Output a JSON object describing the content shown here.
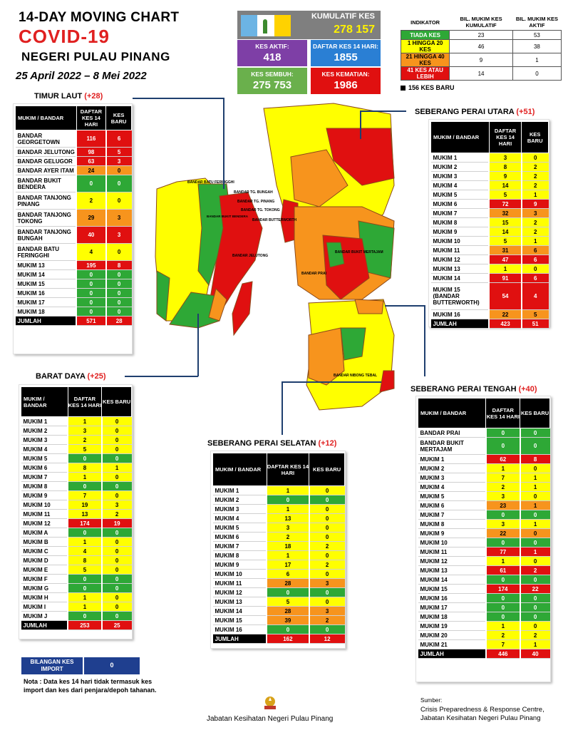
{
  "header": {
    "title": "14-DAY MOVING CHART",
    "subtitle": "COVID-19",
    "state": "NEGERI PULAU PINANG",
    "date_range": "25 April 2022 – 8 Mei 2022"
  },
  "summary": {
    "kumulatif_label": "KUMULATIF KES",
    "kumulatif_value": "278 157",
    "aktif_label": "KES AKTIF:",
    "aktif_value": "418",
    "daftar_label": "DAFTAR KES 14 HARI:",
    "daftar_value": "1855",
    "sembuh_label": "KES SEMBUH:",
    "sembuh_value": "275 753",
    "kematian_label": "KES KEMATIAN:",
    "kematian_value": "1986"
  },
  "colors": {
    "green": "#2ea836",
    "yellow": "#ffff00",
    "orange": "#f7941d",
    "red": "#e01010",
    "purple": "#7e3fa6",
    "blue": "#2a7fd4",
    "kematian": "#e01010",
    "sembuh": "#6ab04c"
  },
  "indicator": {
    "h_indikator": "INDIKATOR",
    "h_kumulatif": "BIL. MUKIM KES KUMULATIF",
    "h_aktif": "BIL. MUKIM KES AKTIF",
    "rows": [
      {
        "label": "TIADA KES",
        "kum": "23",
        "aktif": "53",
        "color": "green"
      },
      {
        "label": "1 HINGGA 20 KES",
        "kum": "46",
        "aktif": "38",
        "color": "yellow"
      },
      {
        "label": "21 HINGGA 40 KES",
        "kum": "9",
        "aktif": "1",
        "color": "orange"
      },
      {
        "label": "41 KES ATAU LEBIH",
        "kum": "14",
        "aktif": "0",
        "color": "red"
      }
    ],
    "baru": "156 KES BARU"
  },
  "sections": {
    "timur_laut": {
      "name": "TIMUR LAUT",
      "new": "(+28)",
      "h1": "MUKIM / BANDAR",
      "h2": "DAFTAR KES 14 HARI",
      "h3": "KES BARU",
      "rows": [
        {
          "n": "BANDAR GEORGETOWN",
          "a": "116",
          "b": "6",
          "c": "red"
        },
        {
          "n": "BANDAR JELUTONG",
          "a": "98",
          "b": "5",
          "c": "red"
        },
        {
          "n": "BANDAR GELUGOR",
          "a": "63",
          "b": "3",
          "c": "red"
        },
        {
          "n": "BANDAR AYER ITAM",
          "a": "24",
          "b": "0",
          "c": "orange"
        },
        {
          "n": "BANDAR BUKIT BENDERA",
          "a": "0",
          "b": "0",
          "c": "green"
        },
        {
          "n": "BANDAR TANJONG PINANG",
          "a": "2",
          "b": "0",
          "c": "yellow"
        },
        {
          "n": "BANDAR TANJONG TOKONG",
          "a": "29",
          "b": "3",
          "c": "orange"
        },
        {
          "n": "BANDAR TANJONG BUNGAH",
          "a": "40",
          "b": "3",
          "c": "red"
        },
        {
          "n": "BANDAR BATU FERINGGHI",
          "a": "4",
          "b": "0",
          "c": "yellow"
        },
        {
          "n": "MUKIM 13",
          "a": "195",
          "b": "8",
          "c": "red"
        },
        {
          "n": "MUKIM 14",
          "a": "0",
          "b": "0",
          "c": "green"
        },
        {
          "n": "MUKIM 15",
          "a": "0",
          "b": "0",
          "c": "green"
        },
        {
          "n": "MUKIM 16",
          "a": "0",
          "b": "0",
          "c": "green"
        },
        {
          "n": "MUKIM 17",
          "a": "0",
          "b": "0",
          "c": "green"
        },
        {
          "n": "MUKIM 18",
          "a": "0",
          "b": "0",
          "c": "green"
        }
      ],
      "total_label": "JUMLAH",
      "total_a": "571",
      "total_b": "28"
    },
    "barat_daya": {
      "name": "BARAT DAYA",
      "new": "(+25)",
      "h1": "MUKIM / BANDAR",
      "h2": "DAFTAR KES 14 HARI",
      "h3": "KES BARU",
      "rows": [
        {
          "n": "MUKIM 1",
          "a": "1",
          "b": "0",
          "c": "yellow"
        },
        {
          "n": "MUKIM 2",
          "a": "3",
          "b": "0",
          "c": "yellow"
        },
        {
          "n": "MUKIM 3",
          "a": "2",
          "b": "0",
          "c": "yellow"
        },
        {
          "n": "MUKIM 4",
          "a": "5",
          "b": "0",
          "c": "yellow"
        },
        {
          "n": "MUKIM 5",
          "a": "0",
          "b": "0",
          "c": "green"
        },
        {
          "n": "MUKIM 6",
          "a": "8",
          "b": "1",
          "c": "yellow"
        },
        {
          "n": "MUKIM 7",
          "a": "1",
          "b": "0",
          "c": "yellow"
        },
        {
          "n": "MUKIM 8",
          "a": "0",
          "b": "0",
          "c": "green"
        },
        {
          "n": "MUKIM 9",
          "a": "7",
          "b": "0",
          "c": "yellow"
        },
        {
          "n": "MUKIM 10",
          "a": "19",
          "b": "3",
          "c": "yellow"
        },
        {
          "n": "MUKIM 11",
          "a": "13",
          "b": "2",
          "c": "yellow"
        },
        {
          "n": "MUKIM 12",
          "a": "174",
          "b": "19",
          "c": "red"
        },
        {
          "n": "MUKIM A",
          "a": "0",
          "b": "0",
          "c": "green"
        },
        {
          "n": "MUKIM B",
          "a": "1",
          "b": "0",
          "c": "yellow"
        },
        {
          "n": "MUKIM C",
          "a": "4",
          "b": "0",
          "c": "yellow"
        },
        {
          "n": "MUKIM D",
          "a": "8",
          "b": "0",
          "c": "yellow"
        },
        {
          "n": "MUKIM E",
          "a": "5",
          "b": "0",
          "c": "yellow"
        },
        {
          "n": "MUKIM F",
          "a": "0",
          "b": "0",
          "c": "green"
        },
        {
          "n": "MUKIM G",
          "a": "0",
          "b": "0",
          "c": "green"
        },
        {
          "n": "MUKIM H",
          "a": "1",
          "b": "0",
          "c": "yellow"
        },
        {
          "n": "MUKIM I",
          "a": "1",
          "b": "0",
          "c": "yellow"
        },
        {
          "n": "MUKIM J",
          "a": "0",
          "b": "0",
          "c": "green"
        }
      ],
      "total_label": "JUMLAH",
      "total_a": "253",
      "total_b": "25"
    },
    "spu": {
      "name": "SEBERANG PERAI UTARA",
      "new": "(+51)",
      "h1": "MUKIM / BANDAR",
      "h2": "DAFTAR KES 14 HARI",
      "h3": "KES BARU",
      "rows": [
        {
          "n": "MUKIM 1",
          "a": "3",
          "b": "0",
          "c": "yellow"
        },
        {
          "n": "MUKIM 2",
          "a": "8",
          "b": "2",
          "c": "yellow"
        },
        {
          "n": "MUKIM 3",
          "a": "9",
          "b": "2",
          "c": "yellow"
        },
        {
          "n": "MUKIM 4",
          "a": "14",
          "b": "2",
          "c": "yellow"
        },
        {
          "n": "MUKIM 5",
          "a": "5",
          "b": "1",
          "c": "yellow"
        },
        {
          "n": "MUKIM 6",
          "a": "72",
          "b": "9",
          "c": "red"
        },
        {
          "n": "MUKIM 7",
          "a": "32",
          "b": "3",
          "c": "orange"
        },
        {
          "n": "MUKIM 8",
          "a": "15",
          "b": "2",
          "c": "yellow"
        },
        {
          "n": "MUKIM 9",
          "a": "14",
          "b": "2",
          "c": "yellow"
        },
        {
          "n": "MUKIM 10",
          "a": "5",
          "b": "1",
          "c": "yellow"
        },
        {
          "n": "MUKIM 11",
          "a": "31",
          "b": "6",
          "c": "orange"
        },
        {
          "n": "MUKIM 12",
          "a": "47",
          "b": "6",
          "c": "red"
        },
        {
          "n": "MUKIM 13",
          "a": "1",
          "b": "0",
          "c": "yellow"
        },
        {
          "n": "MUKIM 14",
          "a": "91",
          "b": "6",
          "c": "red"
        },
        {
          "n": "MUKIM 15 (BANDAR BUTTERWORTH)",
          "a": "54",
          "b": "4",
          "c": "red"
        },
        {
          "n": "MUKIM 16",
          "a": "22",
          "b": "5",
          "c": "orange"
        }
      ],
      "total_label": "JUMLAH",
      "total_a": "423",
      "total_b": "51"
    },
    "sps": {
      "name": "SEBERANG PERAI SELATAN",
      "new": "(+12)",
      "h1": "MUKIM / BANDAR",
      "h2": "DAFTAR KES 14 HARI",
      "h3": "KES BARU",
      "rows": [
        {
          "n": "MUKIM 1",
          "a": "1",
          "b": "0",
          "c": "yellow"
        },
        {
          "n": "MUKIM 2",
          "a": "0",
          "b": "0",
          "c": "green"
        },
        {
          "n": "MUKIM 3",
          "a": "1",
          "b": "0",
          "c": "yellow"
        },
        {
          "n": "MUKIM 4",
          "a": "13",
          "b": "0",
          "c": "yellow"
        },
        {
          "n": "MUKIM 5",
          "a": "3",
          "b": "0",
          "c": "yellow"
        },
        {
          "n": "MUKIM 6",
          "a": "2",
          "b": "0",
          "c": "yellow"
        },
        {
          "n": "MUKIM 7",
          "a": "18",
          "b": "2",
          "c": "yellow"
        },
        {
          "n": "MUKIM 8",
          "a": "1",
          "b": "0",
          "c": "yellow"
        },
        {
          "n": "MUKIM 9",
          "a": "17",
          "b": "2",
          "c": "yellow"
        },
        {
          "n": "MUKIM 10",
          "a": "6",
          "b": "0",
          "c": "yellow"
        },
        {
          "n": "MUKIM 11",
          "a": "28",
          "b": "3",
          "c": "orange"
        },
        {
          "n": "MUKIM 12",
          "a": "0",
          "b": "0",
          "c": "green"
        },
        {
          "n": "MUKIM 13",
          "a": "5",
          "b": "0",
          "c": "yellow"
        },
        {
          "n": "MUKIM 14",
          "a": "28",
          "b": "3",
          "c": "orange"
        },
        {
          "n": "MUKIM 15",
          "a": "39",
          "b": "2",
          "c": "orange"
        },
        {
          "n": "MUKIM 16",
          "a": "0",
          "b": "0",
          "c": "green"
        }
      ],
      "total_label": "JUMLAH",
      "total_a": "162",
      "total_b": "12"
    },
    "spt": {
      "name": "SEBERANG PERAI TENGAH",
      "new": "(+40)",
      "h1": "MUKIM / BANDAR",
      "h2": "DAFTAR KES 14 HARI",
      "h3": "KES BARU",
      "rows": [
        {
          "n": "BANDAR PRAI",
          "a": "0",
          "b": "0",
          "c": "green"
        },
        {
          "n": "BANDAR BUKIT MERTAJAM",
          "a": "0",
          "b": "0",
          "c": "green"
        },
        {
          "n": "MUKIM 1",
          "a": "62",
          "b": "8",
          "c": "red"
        },
        {
          "n": "MUKIM 2",
          "a": "1",
          "b": "0",
          "c": "yellow"
        },
        {
          "n": "MUKIM 3",
          "a": "7",
          "b": "1",
          "c": "yellow"
        },
        {
          "n": "MUKIM 4",
          "a": "2",
          "b": "1",
          "c": "yellow"
        },
        {
          "n": "MUKIM 5",
          "a": "3",
          "b": "0",
          "c": "yellow"
        },
        {
          "n": "MUKIM 6",
          "a": "23",
          "b": "1",
          "c": "orange"
        },
        {
          "n": "MUKIM 7",
          "a": "0",
          "b": "0",
          "c": "green"
        },
        {
          "n": "MUKIM 8",
          "a": "3",
          "b": "1",
          "c": "yellow"
        },
        {
          "n": "MUKIM 9",
          "a": "22",
          "b": "0",
          "c": "orange"
        },
        {
          "n": "MUKIM 10",
          "a": "0",
          "b": "0",
          "c": "green"
        },
        {
          "n": "MUKIM 11",
          "a": "77",
          "b": "1",
          "c": "red"
        },
        {
          "n": "MUKIM 12",
          "a": "1",
          "b": "0",
          "c": "yellow"
        },
        {
          "n": "MUKIM 13",
          "a": "61",
          "b": "2",
          "c": "red"
        },
        {
          "n": "MUKIM 14",
          "a": "0",
          "b": "0",
          "c": "green"
        },
        {
          "n": "MUKIM 15",
          "a": "174",
          "b": "22",
          "c": "red"
        },
        {
          "n": "MUKIM 16",
          "a": "0",
          "b": "0",
          "c": "green"
        },
        {
          "n": "MUKIM 17",
          "a": "0",
          "b": "0",
          "c": "green"
        },
        {
          "n": "MUKIM 18",
          "a": "0",
          "b": "0",
          "c": "green"
        },
        {
          "n": "MUKIM 19",
          "a": "1",
          "b": "0",
          "c": "yellow"
        },
        {
          "n": "MUKIM 20",
          "a": "2",
          "b": "2",
          "c": "yellow"
        },
        {
          "n": "MUKIM 21",
          "a": "7",
          "b": "1",
          "c": "yellow"
        }
      ],
      "total_label": "JUMLAH",
      "total_a": "446",
      "total_b": "40"
    }
  },
  "map_labels": {
    "island": [
      "BANDAR BATU FERINGGHI",
      "BANDAR TG. BUNGAH",
      "BANDAR TG. PINANG",
      "BANDAR TG. TOKONG",
      "BANDAR BUKIT BENDERA",
      "BANDAR JELUTONG"
    ],
    "mainland": [
      "BANDAR BUTTERWORTH",
      "BANDAR PRAI",
      "BANDAR BUKIT MERTAJAM",
      "BANDAR NIBONG TEBAL"
    ]
  },
  "import": {
    "label": "BILANGAN KES IMPORT",
    "value": "0"
  },
  "note": "Nota : Data kes 14 hari tidak termasuk kes import dan kes dari penjara/depoh tahanan.",
  "footer": {
    "dept": "Jabatan Kesihatan Negeri Pulau Pinang",
    "source_label": "Sumber:",
    "source": "Crisis Preparedness & Response Centre, Jabatan Kesihatan Negeri Pulau Pinang"
  },
  "chart_data": [
    {
      "type": "table",
      "title": "TIMUR LAUT (+28)",
      "columns": [
        "MUKIM / BANDAR",
        "DAFTAR KES 14 HARI",
        "KES BARU"
      ]
    },
    {
      "type": "table",
      "title": "BARAT DAYA (+25)",
      "columns": [
        "MUKIM / BANDAR",
        "DAFTAR KES 14 HARI",
        "KES BARU"
      ]
    },
    {
      "type": "table",
      "title": "SEBERANG PERAI UTARA (+51)",
      "columns": [
        "MUKIM / BANDAR",
        "DAFTAR KES 14 HARI",
        "KES BARU"
      ]
    },
    {
      "type": "table",
      "title": "SEBERANG PERAI SELATAN (+12)",
      "columns": [
        "MUKIM / BANDAR",
        "DAFTAR KES 14 HARI",
        "KES BARU"
      ]
    },
    {
      "type": "table",
      "title": "SEBERANG PERAI TENGAH (+40)",
      "columns": [
        "MUKIM / BANDAR",
        "DAFTAR KES 14 HARI",
        "KES BARU"
      ]
    }
  ]
}
